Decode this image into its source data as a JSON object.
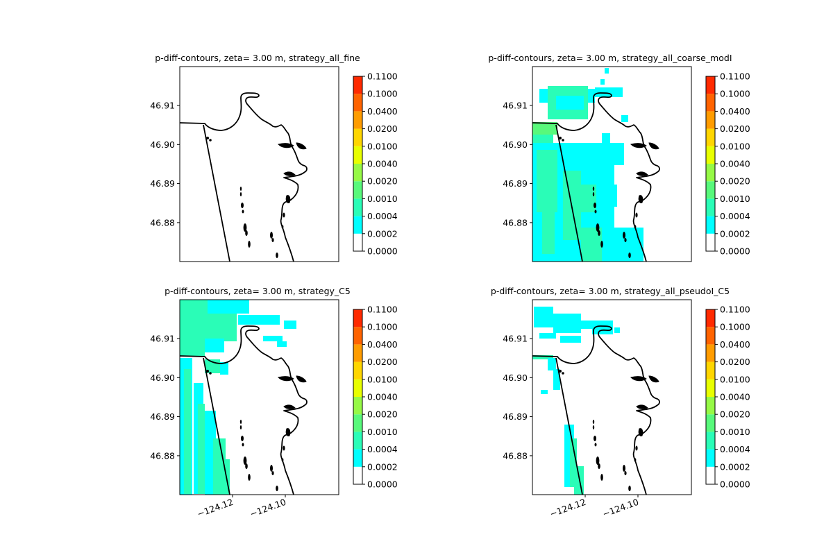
{
  "chart_data": [
    {
      "type": "contour",
      "title": "p-diff-contours, zeta= 3.00 m, strategy_all_fine",
      "fill_pattern": "none",
      "yticks": [
        46.91,
        46.9,
        46.89,
        46.88
      ],
      "ytick_labels": [
        "46.91",
        "46.90",
        "46.89",
        "46.88"
      ],
      "xticks": [],
      "xtick_labels": []
    },
    {
      "type": "contour",
      "title": "p-diff-contours, zeta= 3.00 m, strategy_all_coarse_modI",
      "fill_pattern": "coarse",
      "yticks": [
        46.91,
        46.9,
        46.89,
        46.88
      ],
      "ytick_labels": [
        "46.91",
        "46.90",
        "46.89",
        "46.88"
      ],
      "xticks": [],
      "xtick_labels": []
    },
    {
      "type": "contour",
      "title": "p-diff-contours, zeta= 3.00 m, strategy_C5",
      "fill_pattern": "c5",
      "yticks": [
        46.91,
        46.9,
        46.89,
        46.88
      ],
      "ytick_labels": [
        "46.91",
        "46.90",
        "46.89",
        "46.88"
      ],
      "xticks": [
        -124.12,
        -124.1
      ],
      "xtick_labels": [
        "−124.12",
        "−124.10"
      ]
    },
    {
      "type": "contour",
      "title": "p-diff-contours, zeta= 3.00 m, strategy_all_pseudoI_C5",
      "fill_pattern": "pseudo",
      "yticks": [
        46.91,
        46.9,
        46.89,
        46.88
      ],
      "ytick_labels": [
        "46.91",
        "46.90",
        "46.89",
        "46.88"
      ],
      "xticks": [
        -124.12,
        -124.1
      ],
      "xtick_labels": [
        "−124.12",
        "−124.10"
      ]
    }
  ],
  "colorbar": {
    "levels": [
      "0.0000",
      "0.0002",
      "0.0004",
      "0.0010",
      "0.0020",
      "0.0040",
      "0.0100",
      "0.0200",
      "0.0400",
      "0.1000",
      "0.1100"
    ],
    "colors": [
      "#ffffff",
      "#00ffff",
      "#2afdb7",
      "#58f97b",
      "#96f946",
      "#e8ff00",
      "#ffd600",
      "#ff9c00",
      "#ff6300",
      "#ff2a00",
      "#ff0000"
    ]
  },
  "coastline_color": "#000000"
}
